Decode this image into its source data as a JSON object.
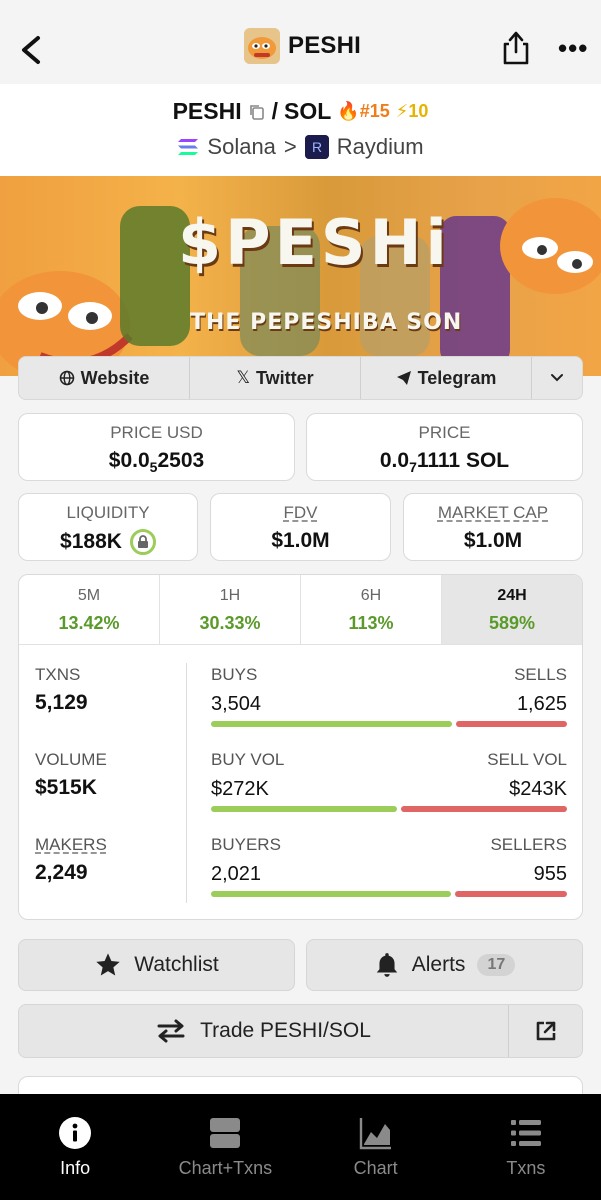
{
  "header": {
    "title": "PESHI"
  },
  "pair": {
    "base": "PESHI",
    "separator": "/",
    "quote": "SOL",
    "rank": "#15",
    "boosts": "10",
    "chain": "Solana",
    "dex": "Raydium"
  },
  "banner": {
    "title": "$PESHi",
    "subtitle": "THE PEPESHIBA SON"
  },
  "links": {
    "website": "Website",
    "twitter": "Twitter",
    "telegram": "Telegram"
  },
  "prices": {
    "usd_label": "PRICE USD",
    "usd_value_prefix": "$0.0",
    "usd_value_sub": "5",
    "usd_value_suffix": "2503",
    "native_label": "PRICE",
    "native_value_prefix": "0.0",
    "native_value_sub": "7",
    "native_value_suffix": "1111 SOL"
  },
  "metrics": {
    "liquidity_label": "LIQUIDITY",
    "liquidity_value": "$188K",
    "fdv_label": "FDV",
    "fdv_value": "$1.0M",
    "mcap_label": "MARKET CAP",
    "mcap_value": "$1.0M"
  },
  "timeframes": [
    {
      "label": "5M",
      "change": "13.42%"
    },
    {
      "label": "1H",
      "change": "30.33%"
    },
    {
      "label": "6H",
      "change": "113%"
    },
    {
      "label": "24H",
      "change": "589%"
    }
  ],
  "stats": {
    "txns_label": "TXNS",
    "txns_value": "5,129",
    "volume_label": "VOLUME",
    "volume_value": "$515K",
    "makers_label": "MAKERS",
    "makers_value": "2,249",
    "buys_label": "BUYS",
    "buys_value": "3,504",
    "sells_label": "SELLS",
    "sells_value": "1,625",
    "buys_fraction": 0.683,
    "buyvol_label": "BUY VOL",
    "buyvol_value": "$272K",
    "sellvol_label": "SELL VOL",
    "sellvol_value": "$243K",
    "buyvol_fraction": 0.528,
    "buyers_label": "BUYERS",
    "buyers_value": "2,021",
    "sellers_label": "SELLERS",
    "sellers_value": "955",
    "buyers_fraction": 0.679
  },
  "actions": {
    "watchlist": "Watchlist",
    "alerts": "Alerts",
    "alerts_count": "17",
    "trade": "Trade PESHI/SOL"
  },
  "nav": [
    {
      "label": "Info"
    },
    {
      "label": "Chart+Txns"
    },
    {
      "label": "Chart"
    },
    {
      "label": "Txns"
    }
  ],
  "colors": {
    "positive": "#5a9a2a",
    "buy_bar": "#9ccc5a",
    "sell_bar": "#e06565"
  }
}
